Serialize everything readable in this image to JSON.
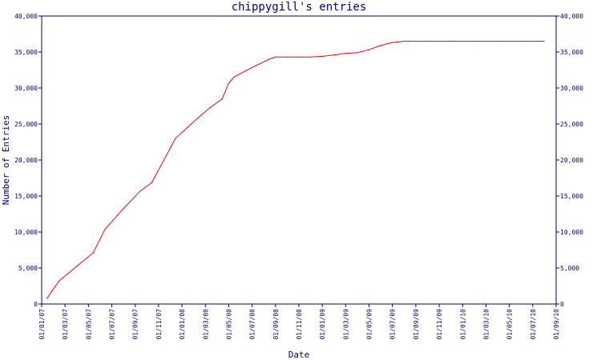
{
  "chart_data": {
    "type": "line",
    "title": "chippygill's entries",
    "xlabel": "Date",
    "ylabel": "Number of Entries",
    "xlim": [
      "2007-01-01",
      "2010-09-01"
    ],
    "ylim": [
      0,
      40000
    ],
    "grid": false,
    "legend": "none",
    "x_tick_labels": [
      "01/01/07",
      "01/03/07",
      "01/05/07",
      "01/07/07",
      "01/09/07",
      "01/11/07",
      "01/01/08",
      "01/03/08",
      "01/05/08",
      "01/07/08",
      "01/09/08",
      "01/11/08",
      "01/01/09",
      "01/03/09",
      "01/05/09",
      "01/07/09",
      "01/09/09",
      "01/11/09",
      "01/01/10",
      "01/03/10",
      "01/05/10",
      "01/07/10",
      "01/09/10"
    ],
    "y_tick_labels": [
      "0",
      "5,000",
      "10,000",
      "15,000",
      "20,000",
      "25,000",
      "30,000",
      "35,000",
      "40,000"
    ],
    "series": [
      {
        "color": "#ff0000",
        "x": [
          "2007-01-15",
          "2007-02-15",
          "2007-04-01",
          "2007-05-15",
          "2007-06-15",
          "2007-08-01",
          "2007-09-15",
          "2007-10-15",
          "2007-11-15",
          "2007-12-15",
          "2008-01-15",
          "2008-02-15",
          "2008-03-15",
          "2008-04-15",
          "2008-05-01",
          "2008-05-15",
          "2008-06-15",
          "2008-07-15",
          "2008-08-15",
          "2008-09-01",
          "2008-10-01",
          "2008-11-01",
          "2008-12-01",
          "2009-01-01",
          "2009-02-01",
          "2009-03-01",
          "2009-04-01",
          "2009-05-01",
          "2009-06-01",
          "2009-07-01",
          "2009-08-01",
          "2009-09-01",
          "2009-10-01",
          "2009-12-01",
          "2010-02-01",
          "2010-04-01",
          "2010-06-01",
          "2010-08-01"
        ],
        "values": [
          800,
          3200,
          5200,
          7100,
          10400,
          13200,
          15700,
          16900,
          20000,
          23000,
          24500,
          26000,
          27300,
          28500,
          30600,
          31500,
          32400,
          33200,
          34000,
          34300,
          34300,
          34300,
          34300,
          34400,
          34600,
          34800,
          34900,
          35300,
          35900,
          36300,
          36500,
          36500,
          36500,
          36500,
          36500,
          36500,
          36500,
          36500
        ]
      }
    ]
  }
}
